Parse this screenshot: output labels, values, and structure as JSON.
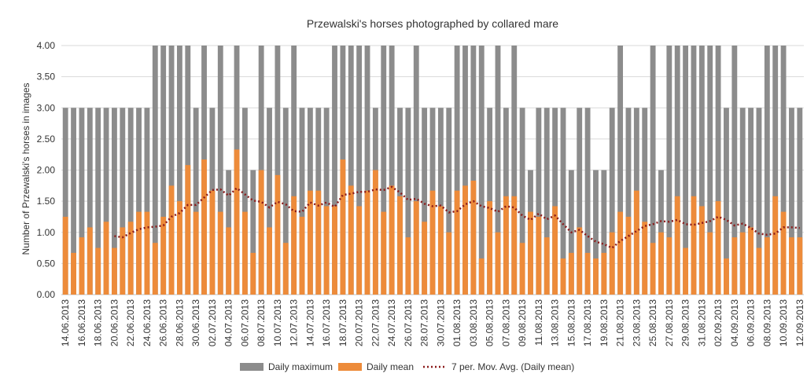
{
  "chart_data": {
    "type": "bar",
    "title": "Przewalski's horses photographed by collared mare",
    "y_label": "Number of Przewalski's horses in images",
    "categories": [
      "14.06.2013",
      null,
      "16.06.2013",
      null,
      "18.06.2013",
      null,
      "20.06.2013",
      null,
      "22.06.2013",
      null,
      "24.06.2013",
      null,
      "26.06.2013",
      null,
      "28.06.2013",
      null,
      "30.06.2013",
      null,
      "02.07.2013",
      null,
      "04.07.2013",
      null,
      "06.07.2013",
      null,
      "08.07.2013",
      null,
      "10.07.2013",
      null,
      "12.07.2013",
      null,
      "14.07.2013",
      null,
      "16.07.2013",
      null,
      "18.07.2013",
      null,
      "20.07.2013",
      null,
      "22.07.2013",
      null,
      "24.07.2013",
      null,
      "26.07.2013",
      null,
      "28.07.2013",
      null,
      "30.07.2013",
      null,
      "01.08.2013",
      null,
      "03.08.2013",
      null,
      "05.08.2013",
      null,
      "07.08.2013",
      null,
      "09.08.2013",
      null,
      "11.08.2013",
      null,
      "13.08.2013",
      null,
      "15.08.2013",
      null,
      "17.08.2013",
      null,
      "19.08.2013",
      null,
      "21.08.2013",
      null,
      "23.08.2013",
      null,
      "25.08.2013",
      null,
      "27.08.2013",
      null,
      "29.08.2013",
      null,
      "31.08.2013",
      null,
      "02.09.2013",
      null,
      "04.09.2013",
      null,
      "06.09.2013",
      null,
      "08.09.2013",
      null,
      "10.09.2013",
      null,
      "12.09.2013"
    ],
    "series": [
      {
        "name": "Daily maximum",
        "color": "#8c8c8c",
        "values": [
          3,
          3,
          3,
          3,
          3,
          3,
          3,
          3,
          3,
          3,
          3,
          4,
          4,
          4,
          4,
          4,
          3,
          4,
          3,
          4,
          2,
          4,
          3,
          2,
          4,
          3,
          4,
          3,
          4,
          3,
          3,
          3,
          3,
          4,
          4,
          4,
          4,
          4,
          3,
          4,
          4,
          3,
          3,
          4,
          3,
          3,
          3,
          3,
          4,
          4,
          4,
          4,
          3,
          4,
          3,
          4,
          3,
          2,
          3,
          3,
          3,
          3,
          2,
          3,
          3,
          2,
          2,
          3,
          4,
          3,
          3,
          3,
          4,
          2,
          4,
          4,
          4,
          4,
          4,
          4,
          4,
          3,
          4,
          3,
          3,
          3,
          4,
          4,
          4,
          3,
          3
        ]
      },
      {
        "name": "Daily mean",
        "color": "#ed8b3a",
        "values": [
          1.25,
          0.67,
          0.92,
          1.08,
          0.75,
          1.17,
          0.75,
          1.08,
          1.17,
          1.33,
          1.33,
          0.83,
          1.25,
          1.75,
          1.5,
          2.08,
          1.33,
          2.17,
          1.67,
          1.33,
          1.08,
          2.33,
          1.33,
          0.67,
          2.0,
          1.08,
          1.92,
          0.83,
          1.58,
          1.25,
          1.67,
          1.67,
          1.42,
          1.42,
          2.17,
          1.75,
          1.42,
          1.67,
          2.0,
          1.33,
          1.75,
          1.58,
          0.92,
          1.5,
          1.17,
          1.67,
          1.42,
          1.0,
          1.67,
          1.75,
          1.83,
          0.58,
          1.5,
          1.0,
          1.58,
          1.58,
          0.83,
          1.33,
          1.25,
          0.92,
          1.42,
          0.58,
          0.67,
          1.08,
          0.67,
          0.58,
          0.67,
          1.0,
          1.33,
          1.25,
          1.67,
          1.17,
          0.83,
          1.0,
          0.92,
          1.58,
          0.75,
          1.58,
          1.42,
          1.0,
          1.5,
          0.58,
          0.92,
          1.0,
          1.08,
          0.75,
          0.92,
          1.58,
          1.33,
          0.92,
          0.92
        ]
      },
      {
        "name": "7 per. Mov. Avg. (Daily mean)",
        "color": "#8b1a1a",
        "kind": "line",
        "values": [
          null,
          null,
          null,
          null,
          null,
          null,
          0.94,
          0.92,
          0.99,
          1.05,
          1.08,
          1.09,
          1.11,
          1.25,
          1.31,
          1.44,
          1.44,
          1.56,
          1.68,
          1.69,
          1.59,
          1.71,
          1.61,
          1.51,
          1.49,
          1.4,
          1.49,
          1.45,
          1.34,
          1.33,
          1.48,
          1.43,
          1.48,
          1.41,
          1.6,
          1.62,
          1.65,
          1.65,
          1.69,
          1.68,
          1.73,
          1.64,
          1.52,
          1.54,
          1.46,
          1.42,
          1.43,
          1.32,
          1.34,
          1.45,
          1.5,
          1.42,
          1.39,
          1.33,
          1.42,
          1.4,
          1.27,
          1.2,
          1.3,
          1.21,
          1.27,
          1.13,
          1.0,
          1.04,
          0.94,
          0.85,
          0.81,
          0.75,
          0.86,
          0.94,
          1.02,
          1.1,
          1.13,
          1.18,
          1.17,
          1.2,
          1.13,
          1.12,
          1.15,
          1.18,
          1.25,
          1.2,
          1.11,
          1.14,
          1.07,
          0.98,
          0.96,
          0.98,
          1.08,
          1.08,
          1.07
        ]
      }
    ],
    "ylim": [
      0,
      4
    ],
    "yticks": [
      {
        "value": 0,
        "label": "0.00"
      },
      {
        "value": 0.5,
        "label": "0.50"
      },
      {
        "value": 1,
        "label": "1.00"
      },
      {
        "value": 1.5,
        "label": "1.50"
      },
      {
        "value": 2,
        "label": "2.00"
      },
      {
        "value": 2.5,
        "label": "2.50"
      },
      {
        "value": 3,
        "label": "3.00"
      },
      {
        "value": 3.5,
        "label": "3.50"
      },
      {
        "value": 4,
        "label": "4.00"
      }
    ],
    "grid": true,
    "legend": "bottom"
  }
}
